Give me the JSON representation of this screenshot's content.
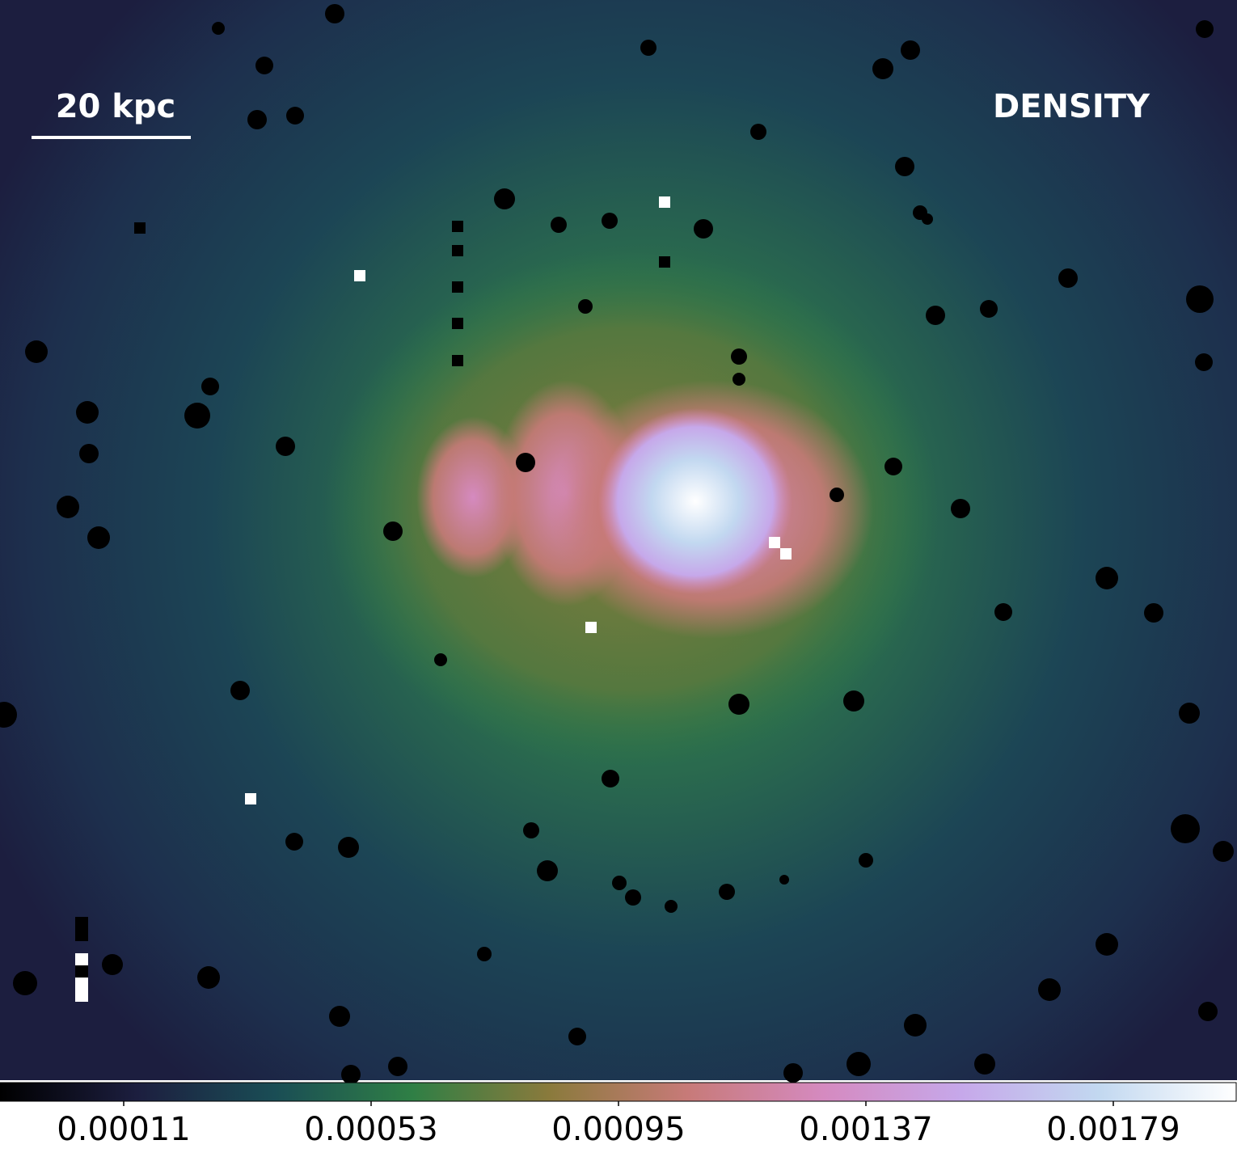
{
  "chart_data": {
    "type": "heatmap",
    "title": "DENSITY",
    "scale_bar_label": "20 kpc",
    "colormap": [
      "#000000",
      "#1c1e3f",
      "#1a4d55",
      "#2f7f45",
      "#8a7a3c",
      "#c77a78",
      "#d58ac0",
      "#c6a8ea",
      "#c2d8f0",
      "#ffffff"
    ],
    "clim": [
      -0.0001,
      0.002
    ],
    "cticks": [
      0.00011,
      0.00053,
      0.00095,
      0.00137,
      0.00179
    ]
  }
}
